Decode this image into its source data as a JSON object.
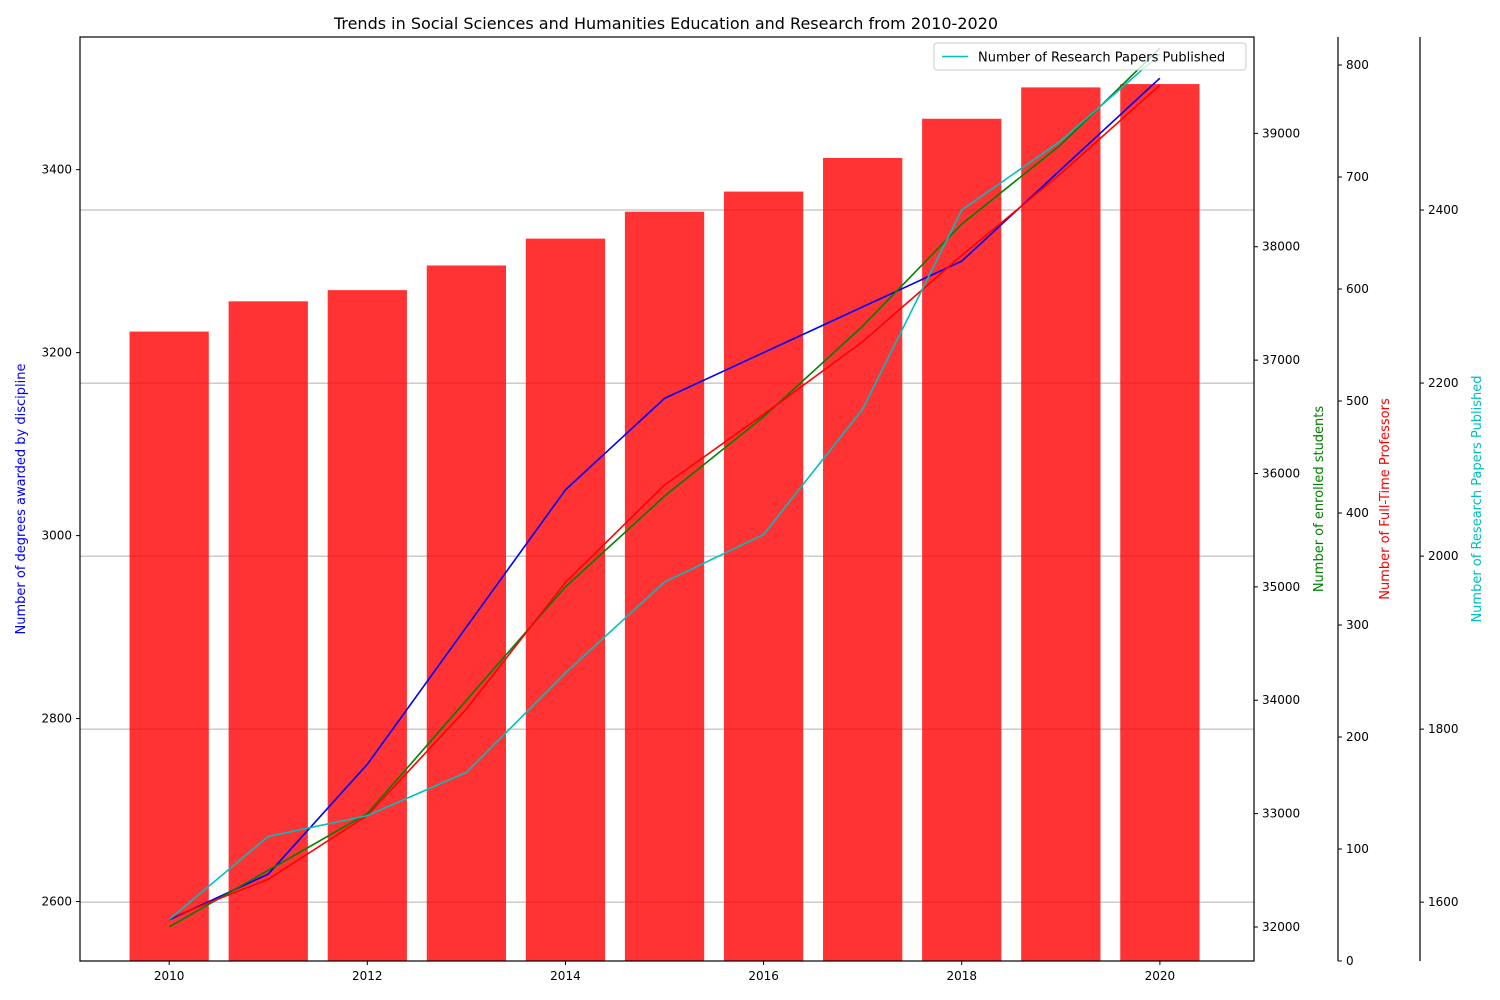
{
  "chart_data": {
    "type": "bar",
    "title": "Trends in Social Sciences and Humanities Education and Research from 2010-2020",
    "x": [
      2010,
      2011,
      2012,
      2013,
      2014,
      2015,
      2016,
      2017,
      2018,
      2019,
      2020
    ],
    "x_ticks": [
      "2010",
      "2012",
      "2014",
      "2016",
      "2018",
      "2020"
    ],
    "x_range": [
      2009.1,
      2020.95
    ],
    "grid": true,
    "legend": {
      "position": "top-right",
      "entries": [
        "Number of Research Papers Published"
      ]
    },
    "axes": {
      "degrees": {
        "label": "Number of degrees awarded by discipline",
        "side": "left",
        "range": [
          2535,
          3545
        ],
        "ticks": [
          "2600",
          "2800",
          "3000",
          "3200",
          "3400"
        ],
        "color": "#0000ff"
      },
      "students": {
        "label": "Number of enrolled students",
        "side": "right",
        "range": [
          31700,
          39850
        ],
        "ticks": [
          "32000",
          "33000",
          "34000",
          "35000",
          "36000",
          "37000",
          "38000",
          "39000"
        ],
        "color": "#008000"
      },
      "professors": {
        "label": "Number of Full-Time Professors",
        "side": "right",
        "range": [
          0,
          825
        ],
        "ticks": [
          "0",
          "100",
          "200",
          "300",
          "400",
          "500",
          "600",
          "700",
          "800"
        ],
        "color": "#ff0000"
      },
      "papers": {
        "label": "Number of Research Papers Published",
        "side": "right",
        "range": [
          1532,
          2600
        ],
        "ticks": [
          "1600",
          "1800",
          "2000",
          "2200",
          "2400"
        ],
        "color": "#00bfbf"
      }
    },
    "series": [
      {
        "name": "Number of degrees awarded by discipline",
        "type": "line",
        "axis": "degrees",
        "color": "#0000ff",
        "values": [
          2580,
          2630,
          2750,
          2900,
          3050,
          3150,
          3200,
          3250,
          3300,
          3400,
          3500
        ]
      },
      {
        "name": "Number of enrolled students",
        "type": "line",
        "axis": "students",
        "color": "#008000",
        "values": [
          32000,
          32500,
          33000,
          34000,
          35000,
          35800,
          36500,
          37300,
          38200,
          38900,
          39750
        ]
      },
      {
        "name": "Number of Full-Time Professors",
        "type": "bar",
        "axis": "professors",
        "color": "#ff0000",
        "values": [
          562,
          589,
          599,
          621,
          645,
          669,
          687,
          717,
          752,
          780,
          783
        ]
      },
      {
        "name": "Number of Full-Time Professors",
        "type": "line",
        "axis": "professors",
        "color": "#ff0000",
        "values": [
          38,
          73,
          130,
          225,
          338,
          425,
          488,
          553,
          630,
          703,
          782
        ]
      },
      {
        "name": "Number of Research Papers Published",
        "type": "line",
        "axis": "papers",
        "color": "#00bfbf",
        "values": [
          1580,
          1676,
          1700,
          1750,
          1865,
          1970,
          2025,
          2170,
          2400,
          2480,
          2580
        ]
      }
    ]
  }
}
